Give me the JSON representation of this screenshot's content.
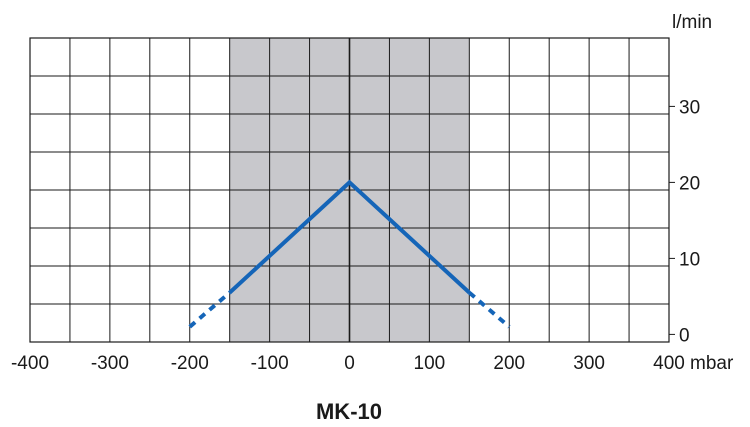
{
  "chart_data": {
    "type": "line",
    "title": "MK-10",
    "x_unit": "mbar",
    "y_unit": "l/min",
    "xlim": [
      -400,
      400
    ],
    "ylim": [
      -1,
      39
    ],
    "x_ticks": [
      -400,
      -300,
      -200,
      -100,
      0,
      100,
      200,
      300,
      400
    ],
    "x_tick_labels": [
      "-400",
      "-300",
      "-200",
      "-100",
      "0",
      "100",
      "200",
      "300",
      "400"
    ],
    "y_ticks": [
      0,
      10,
      20,
      30
    ],
    "y_tick_labels": [
      "0",
      "10",
      "20",
      "30"
    ],
    "grid": true,
    "shaded_region": {
      "x": [
        -150,
        150
      ],
      "color": "#c8c8cc"
    },
    "series": [
      {
        "segments": [
          {
            "style": "dashed",
            "x": [
              -200,
              -150
            ],
            "y": [
              1,
              5.5
            ]
          },
          {
            "style": "solid",
            "x": [
              -150,
              0,
              150
            ],
            "y": [
              5.5,
              20,
              5.5
            ]
          },
          {
            "style": "dashed",
            "x": [
              150,
              200
            ],
            "y": [
              5.5,
              1
            ]
          }
        ],
        "color": "#1565b8"
      }
    ]
  }
}
